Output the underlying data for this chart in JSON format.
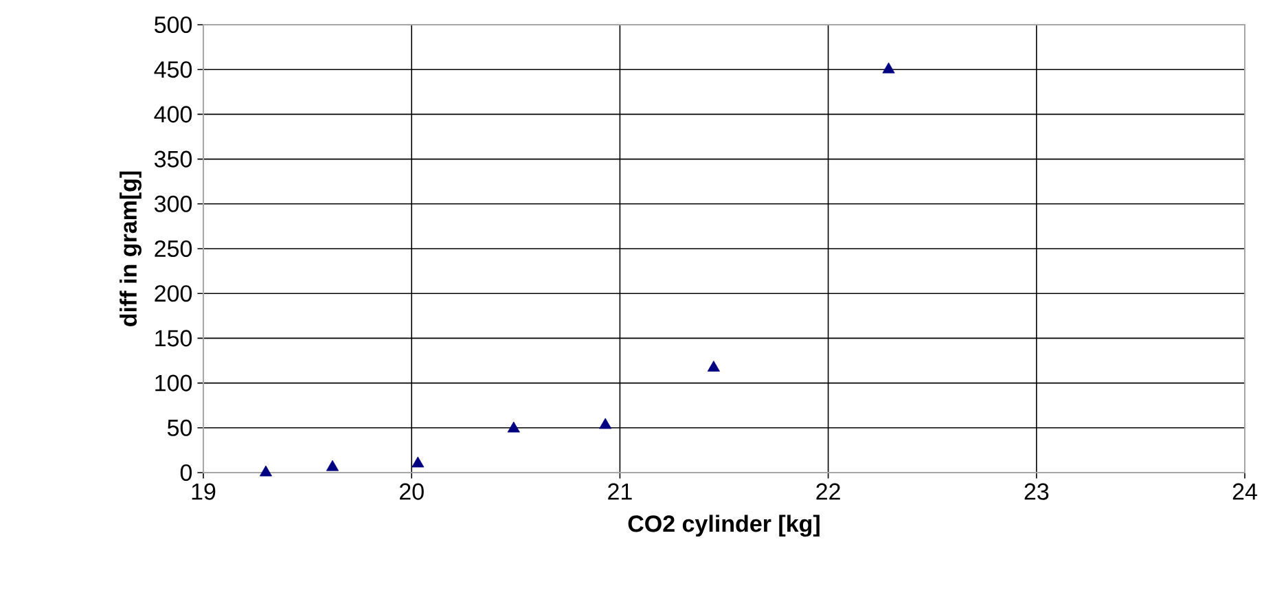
{
  "chart_data": {
    "type": "scatter",
    "xlabel": "CO2 cylinder [kg]",
    "ylabel": "diff in gram[g]",
    "x": [
      19.3,
      19.62,
      20.03,
      20.49,
      20.93,
      21.45,
      22.29
    ],
    "values": [
      0,
      6,
      10,
      49,
      53,
      117,
      450
    ],
    "color": "#000080",
    "marker": "triangle",
    "grid": true,
    "xlim": [
      19,
      24
    ],
    "xticks": [
      19,
      20,
      21,
      22,
      23,
      24
    ],
    "ylim": [
      0,
      500
    ],
    "yticks": [
      0,
      50,
      100,
      150,
      200,
      250,
      300,
      350,
      400,
      450,
      500
    ]
  }
}
